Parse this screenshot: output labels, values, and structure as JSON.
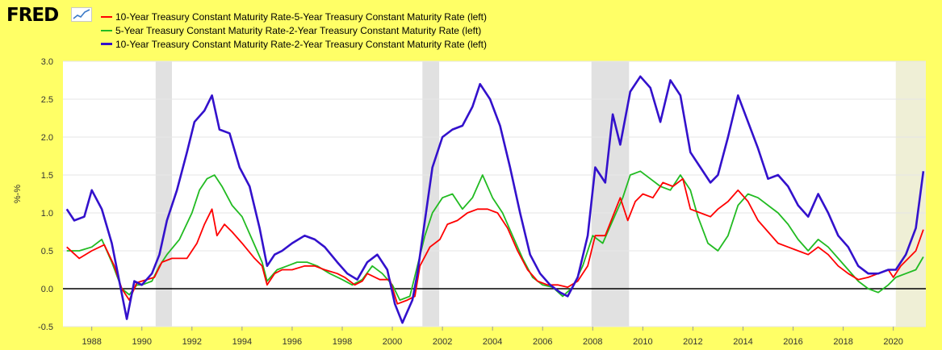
{
  "header": {
    "logo_text": "FRED",
    "logo_icon": "trend-line-icon"
  },
  "chart_data": {
    "type": "line",
    "ylabel": "%-%",
    "ylim": [
      -0.5,
      3.0
    ],
    "xlim": [
      1986.85,
      2021.3
    ],
    "yticks": [
      "3.0",
      "2.5",
      "2.0",
      "1.5",
      "1.0",
      "0.5",
      "0.0",
      "-0.5"
    ],
    "yticks_values": [
      3.0,
      2.5,
      2.0,
      1.5,
      1.0,
      0.5,
      0.0,
      -0.5
    ],
    "xticks": [
      "1988",
      "1990",
      "1992",
      "1994",
      "1996",
      "1998",
      "2000",
      "2002",
      "2004",
      "2006",
      "2008",
      "2010",
      "2012",
      "2014",
      "2016",
      "2018",
      "2020"
    ],
    "grid": true,
    "legend_position": "top-left",
    "recessions": [
      [
        1990.55,
        1991.2
      ],
      [
        2001.2,
        2001.87
      ],
      [
        2007.95,
        2009.45
      ],
      [
        2020.1,
        2021.3
      ]
    ],
    "series": [
      {
        "name": "10-Year Treasury Constant Maturity Rate-5-Year Treasury Constant Maturity Rate (left)",
        "color": "#ff0000",
        "points": [
          [
            1987.0,
            0.55
          ],
          [
            1987.5,
            0.4
          ],
          [
            1988.0,
            0.5
          ],
          [
            1988.5,
            0.58
          ],
          [
            1988.9,
            0.3
          ],
          [
            1989.2,
            0.0
          ],
          [
            1989.5,
            -0.15
          ],
          [
            1989.8,
            0.08
          ],
          [
            1990.0,
            0.1
          ],
          [
            1990.5,
            0.15
          ],
          [
            1990.8,
            0.35
          ],
          [
            1991.2,
            0.4
          ],
          [
            1991.8,
            0.4
          ],
          [
            1992.2,
            0.6
          ],
          [
            1992.5,
            0.85
          ],
          [
            1992.8,
            1.05
          ],
          [
            1993.0,
            0.7
          ],
          [
            1993.3,
            0.85
          ],
          [
            1993.6,
            0.75
          ],
          [
            1994.0,
            0.6
          ],
          [
            1994.5,
            0.4
          ],
          [
            1994.8,
            0.3
          ],
          [
            1995.0,
            0.05
          ],
          [
            1995.3,
            0.2
          ],
          [
            1995.6,
            0.25
          ],
          [
            1996.0,
            0.25
          ],
          [
            1996.5,
            0.3
          ],
          [
            1996.9,
            0.3
          ],
          [
            1997.3,
            0.25
          ],
          [
            1997.8,
            0.2
          ],
          [
            1998.1,
            0.15
          ],
          [
            1998.5,
            0.05
          ],
          [
            1998.8,
            0.1
          ],
          [
            1999.0,
            0.2
          ],
          [
            1999.5,
            0.12
          ],
          [
            1999.9,
            0.12
          ],
          [
            2000.2,
            -0.2
          ],
          [
            2000.6,
            -0.15
          ],
          [
            2000.9,
            -0.1
          ],
          [
            2001.1,
            0.3
          ],
          [
            2001.5,
            0.55
          ],
          [
            2001.9,
            0.65
          ],
          [
            2002.2,
            0.85
          ],
          [
            2002.6,
            0.9
          ],
          [
            2003.0,
            1.0
          ],
          [
            2003.4,
            1.05
          ],
          [
            2003.8,
            1.05
          ],
          [
            2004.2,
            1.0
          ],
          [
            2004.6,
            0.8
          ],
          [
            2005.0,
            0.5
          ],
          [
            2005.4,
            0.25
          ],
          [
            2005.8,
            0.1
          ],
          [
            2006.2,
            0.05
          ],
          [
            2006.6,
            0.05
          ],
          [
            2007.0,
            0.02
          ],
          [
            2007.4,
            0.1
          ],
          [
            2007.8,
            0.3
          ],
          [
            2008.1,
            0.7
          ],
          [
            2008.5,
            0.7
          ],
          [
            2008.8,
            0.95
          ],
          [
            2009.1,
            1.2
          ],
          [
            2009.4,
            0.9
          ],
          [
            2009.7,
            1.15
          ],
          [
            2010.0,
            1.25
          ],
          [
            2010.4,
            1.2
          ],
          [
            2010.8,
            1.4
          ],
          [
            2011.2,
            1.35
          ],
          [
            2011.6,
            1.45
          ],
          [
            2011.9,
            1.05
          ],
          [
            2012.3,
            1.0
          ],
          [
            2012.7,
            0.95
          ],
          [
            2013.0,
            1.05
          ],
          [
            2013.4,
            1.15
          ],
          [
            2013.8,
            1.3
          ],
          [
            2014.2,
            1.15
          ],
          [
            2014.6,
            0.9
          ],
          [
            2015.0,
            0.75
          ],
          [
            2015.4,
            0.6
          ],
          [
            2015.8,
            0.55
          ],
          [
            2016.2,
            0.5
          ],
          [
            2016.6,
            0.45
          ],
          [
            2017.0,
            0.55
          ],
          [
            2017.4,
            0.45
          ],
          [
            2017.8,
            0.3
          ],
          [
            2018.2,
            0.2
          ],
          [
            2018.6,
            0.12
          ],
          [
            2019.0,
            0.15
          ],
          [
            2019.4,
            0.2
          ],
          [
            2019.8,
            0.25
          ],
          [
            2020.0,
            0.15
          ],
          [
            2020.3,
            0.3
          ],
          [
            2020.6,
            0.4
          ],
          [
            2020.9,
            0.5
          ],
          [
            2021.2,
            0.78
          ]
        ]
      },
      {
        "name": "5-Year Treasury Constant Maturity Rate-2-Year Treasury Constant Maturity Rate (left)",
        "color": "#22bb22",
        "points": [
          [
            1987.0,
            0.5
          ],
          [
            1987.5,
            0.5
          ],
          [
            1988.0,
            0.55
          ],
          [
            1988.4,
            0.65
          ],
          [
            1988.8,
            0.35
          ],
          [
            1989.2,
            0.0
          ],
          [
            1989.5,
            -0.08
          ],
          [
            1989.8,
            0.05
          ],
          [
            1990.0,
            0.05
          ],
          [
            1990.4,
            0.1
          ],
          [
            1990.7,
            0.3
          ],
          [
            1991.0,
            0.45
          ],
          [
            1991.5,
            0.65
          ],
          [
            1992.0,
            1.0
          ],
          [
            1992.3,
            1.3
          ],
          [
            1992.6,
            1.45
          ],
          [
            1992.9,
            1.5
          ],
          [
            1993.2,
            1.35
          ],
          [
            1993.6,
            1.1
          ],
          [
            1994.0,
            0.95
          ],
          [
            1994.4,
            0.65
          ],
          [
            1994.8,
            0.35
          ],
          [
            1995.0,
            0.1
          ],
          [
            1995.4,
            0.25
          ],
          [
            1995.8,
            0.3
          ],
          [
            1996.2,
            0.35
          ],
          [
            1996.6,
            0.35
          ],
          [
            1997.0,
            0.3
          ],
          [
            1997.5,
            0.2
          ],
          [
            1998.0,
            0.12
          ],
          [
            1998.4,
            0.05
          ],
          [
            1998.8,
            0.12
          ],
          [
            1999.2,
            0.3
          ],
          [
            1999.6,
            0.2
          ],
          [
            2000.0,
            0.05
          ],
          [
            2000.3,
            -0.15
          ],
          [
            2000.7,
            -0.1
          ],
          [
            2001.0,
            0.3
          ],
          [
            2001.3,
            0.7
          ],
          [
            2001.6,
            1.0
          ],
          [
            2002.0,
            1.2
          ],
          [
            2002.4,
            1.25
          ],
          [
            2002.8,
            1.05
          ],
          [
            2003.2,
            1.2
          ],
          [
            2003.6,
            1.5
          ],
          [
            2004.0,
            1.2
          ],
          [
            2004.4,
            1.0
          ],
          [
            2004.8,
            0.7
          ],
          [
            2005.2,
            0.4
          ],
          [
            2005.6,
            0.15
          ],
          [
            2006.0,
            0.05
          ],
          [
            2006.4,
            0.02
          ],
          [
            2006.8,
            -0.1
          ],
          [
            2007.2,
            0.02
          ],
          [
            2007.6,
            0.3
          ],
          [
            2008.0,
            0.7
          ],
          [
            2008.4,
            0.6
          ],
          [
            2008.8,
            0.9
          ],
          [
            2009.2,
            1.2
          ],
          [
            2009.5,
            1.5
          ],
          [
            2009.9,
            1.55
          ],
          [
            2010.3,
            1.45
          ],
          [
            2010.7,
            1.35
          ],
          [
            2011.1,
            1.3
          ],
          [
            2011.5,
            1.5
          ],
          [
            2011.9,
            1.3
          ],
          [
            2012.2,
            0.95
          ],
          [
            2012.6,
            0.6
          ],
          [
            2013.0,
            0.5
          ],
          [
            2013.4,
            0.7
          ],
          [
            2013.8,
            1.1
          ],
          [
            2014.2,
            1.25
          ],
          [
            2014.6,
            1.2
          ],
          [
            2015.0,
            1.1
          ],
          [
            2015.4,
            1.0
          ],
          [
            2015.8,
            0.85
          ],
          [
            2016.2,
            0.65
          ],
          [
            2016.6,
            0.5
          ],
          [
            2017.0,
            0.65
          ],
          [
            2017.4,
            0.55
          ],
          [
            2017.8,
            0.4
          ],
          [
            2018.2,
            0.25
          ],
          [
            2018.6,
            0.1
          ],
          [
            2019.0,
            0.0
          ],
          [
            2019.4,
            -0.05
          ],
          [
            2019.8,
            0.05
          ],
          [
            2020.1,
            0.15
          ],
          [
            2020.5,
            0.2
          ],
          [
            2020.9,
            0.25
          ],
          [
            2021.2,
            0.42
          ]
        ]
      },
      {
        "name": "10-Year Treasury Constant Maturity Rate-2-Year Treasury Constant Maturity Rate (left)",
        "color": "#3311cc",
        "points": [
          [
            1987.0,
            1.05
          ],
          [
            1987.3,
            0.9
          ],
          [
            1987.7,
            0.95
          ],
          [
            1988.0,
            1.3
          ],
          [
            1988.4,
            1.05
          ],
          [
            1988.8,
            0.6
          ],
          [
            1989.1,
            0.1
          ],
          [
            1989.4,
            -0.4
          ],
          [
            1989.7,
            0.1
          ],
          [
            1990.0,
            0.05
          ],
          [
            1990.4,
            0.2
          ],
          [
            1990.7,
            0.45
          ],
          [
            1991.0,
            0.9
          ],
          [
            1991.4,
            1.3
          ],
          [
            1991.8,
            1.8
          ],
          [
            1992.1,
            2.2
          ],
          [
            1992.5,
            2.35
          ],
          [
            1992.8,
            2.55
          ],
          [
            1993.1,
            2.1
          ],
          [
            1993.5,
            2.05
          ],
          [
            1993.9,
            1.6
          ],
          [
            1994.3,
            1.35
          ],
          [
            1994.7,
            0.8
          ],
          [
            1995.0,
            0.3
          ],
          [
            1995.3,
            0.45
          ],
          [
            1995.6,
            0.5
          ],
          [
            1996.0,
            0.6
          ],
          [
            1996.5,
            0.7
          ],
          [
            1996.9,
            0.65
          ],
          [
            1997.3,
            0.55
          ],
          [
            1997.8,
            0.35
          ],
          [
            1998.2,
            0.2
          ],
          [
            1998.6,
            0.12
          ],
          [
            1999.0,
            0.35
          ],
          [
            1999.4,
            0.45
          ],
          [
            1999.8,
            0.25
          ],
          [
            2000.1,
            -0.2
          ],
          [
            2000.4,
            -0.45
          ],
          [
            2000.8,
            -0.15
          ],
          [
            2001.0,
            0.2
          ],
          [
            2001.3,
            0.9
          ],
          [
            2001.6,
            1.6
          ],
          [
            2002.0,
            2.0
          ],
          [
            2002.4,
            2.1
          ],
          [
            2002.8,
            2.15
          ],
          [
            2003.2,
            2.4
          ],
          [
            2003.5,
            2.7
          ],
          [
            2003.9,
            2.5
          ],
          [
            2004.3,
            2.15
          ],
          [
            2004.7,
            1.6
          ],
          [
            2005.1,
            1.0
          ],
          [
            2005.5,
            0.45
          ],
          [
            2005.9,
            0.2
          ],
          [
            2006.3,
            0.05
          ],
          [
            2006.7,
            -0.05
          ],
          [
            2007.0,
            -0.1
          ],
          [
            2007.4,
            0.15
          ],
          [
            2007.8,
            0.7
          ],
          [
            2008.1,
            1.6
          ],
          [
            2008.5,
            1.4
          ],
          [
            2008.8,
            2.3
          ],
          [
            2009.1,
            1.9
          ],
          [
            2009.5,
            2.6
          ],
          [
            2009.9,
            2.8
          ],
          [
            2010.3,
            2.65
          ],
          [
            2010.7,
            2.2
          ],
          [
            2011.1,
            2.75
          ],
          [
            2011.5,
            2.55
          ],
          [
            2011.9,
            1.8
          ],
          [
            2012.3,
            1.6
          ],
          [
            2012.7,
            1.4
          ],
          [
            2013.0,
            1.5
          ],
          [
            2013.4,
            2.0
          ],
          [
            2013.8,
            2.55
          ],
          [
            2014.2,
            2.2
          ],
          [
            2014.6,
            1.85
          ],
          [
            2015.0,
            1.45
          ],
          [
            2015.4,
            1.5
          ],
          [
            2015.8,
            1.35
          ],
          [
            2016.2,
            1.1
          ],
          [
            2016.6,
            0.95
          ],
          [
            2017.0,
            1.25
          ],
          [
            2017.4,
            1.0
          ],
          [
            2017.8,
            0.7
          ],
          [
            2018.2,
            0.55
          ],
          [
            2018.6,
            0.3
          ],
          [
            2019.0,
            0.2
          ],
          [
            2019.4,
            0.2
          ],
          [
            2019.8,
            0.25
          ],
          [
            2020.1,
            0.25
          ],
          [
            2020.5,
            0.45
          ],
          [
            2020.9,
            0.8
          ],
          [
            2021.2,
            1.55
          ]
        ]
      }
    ]
  }
}
